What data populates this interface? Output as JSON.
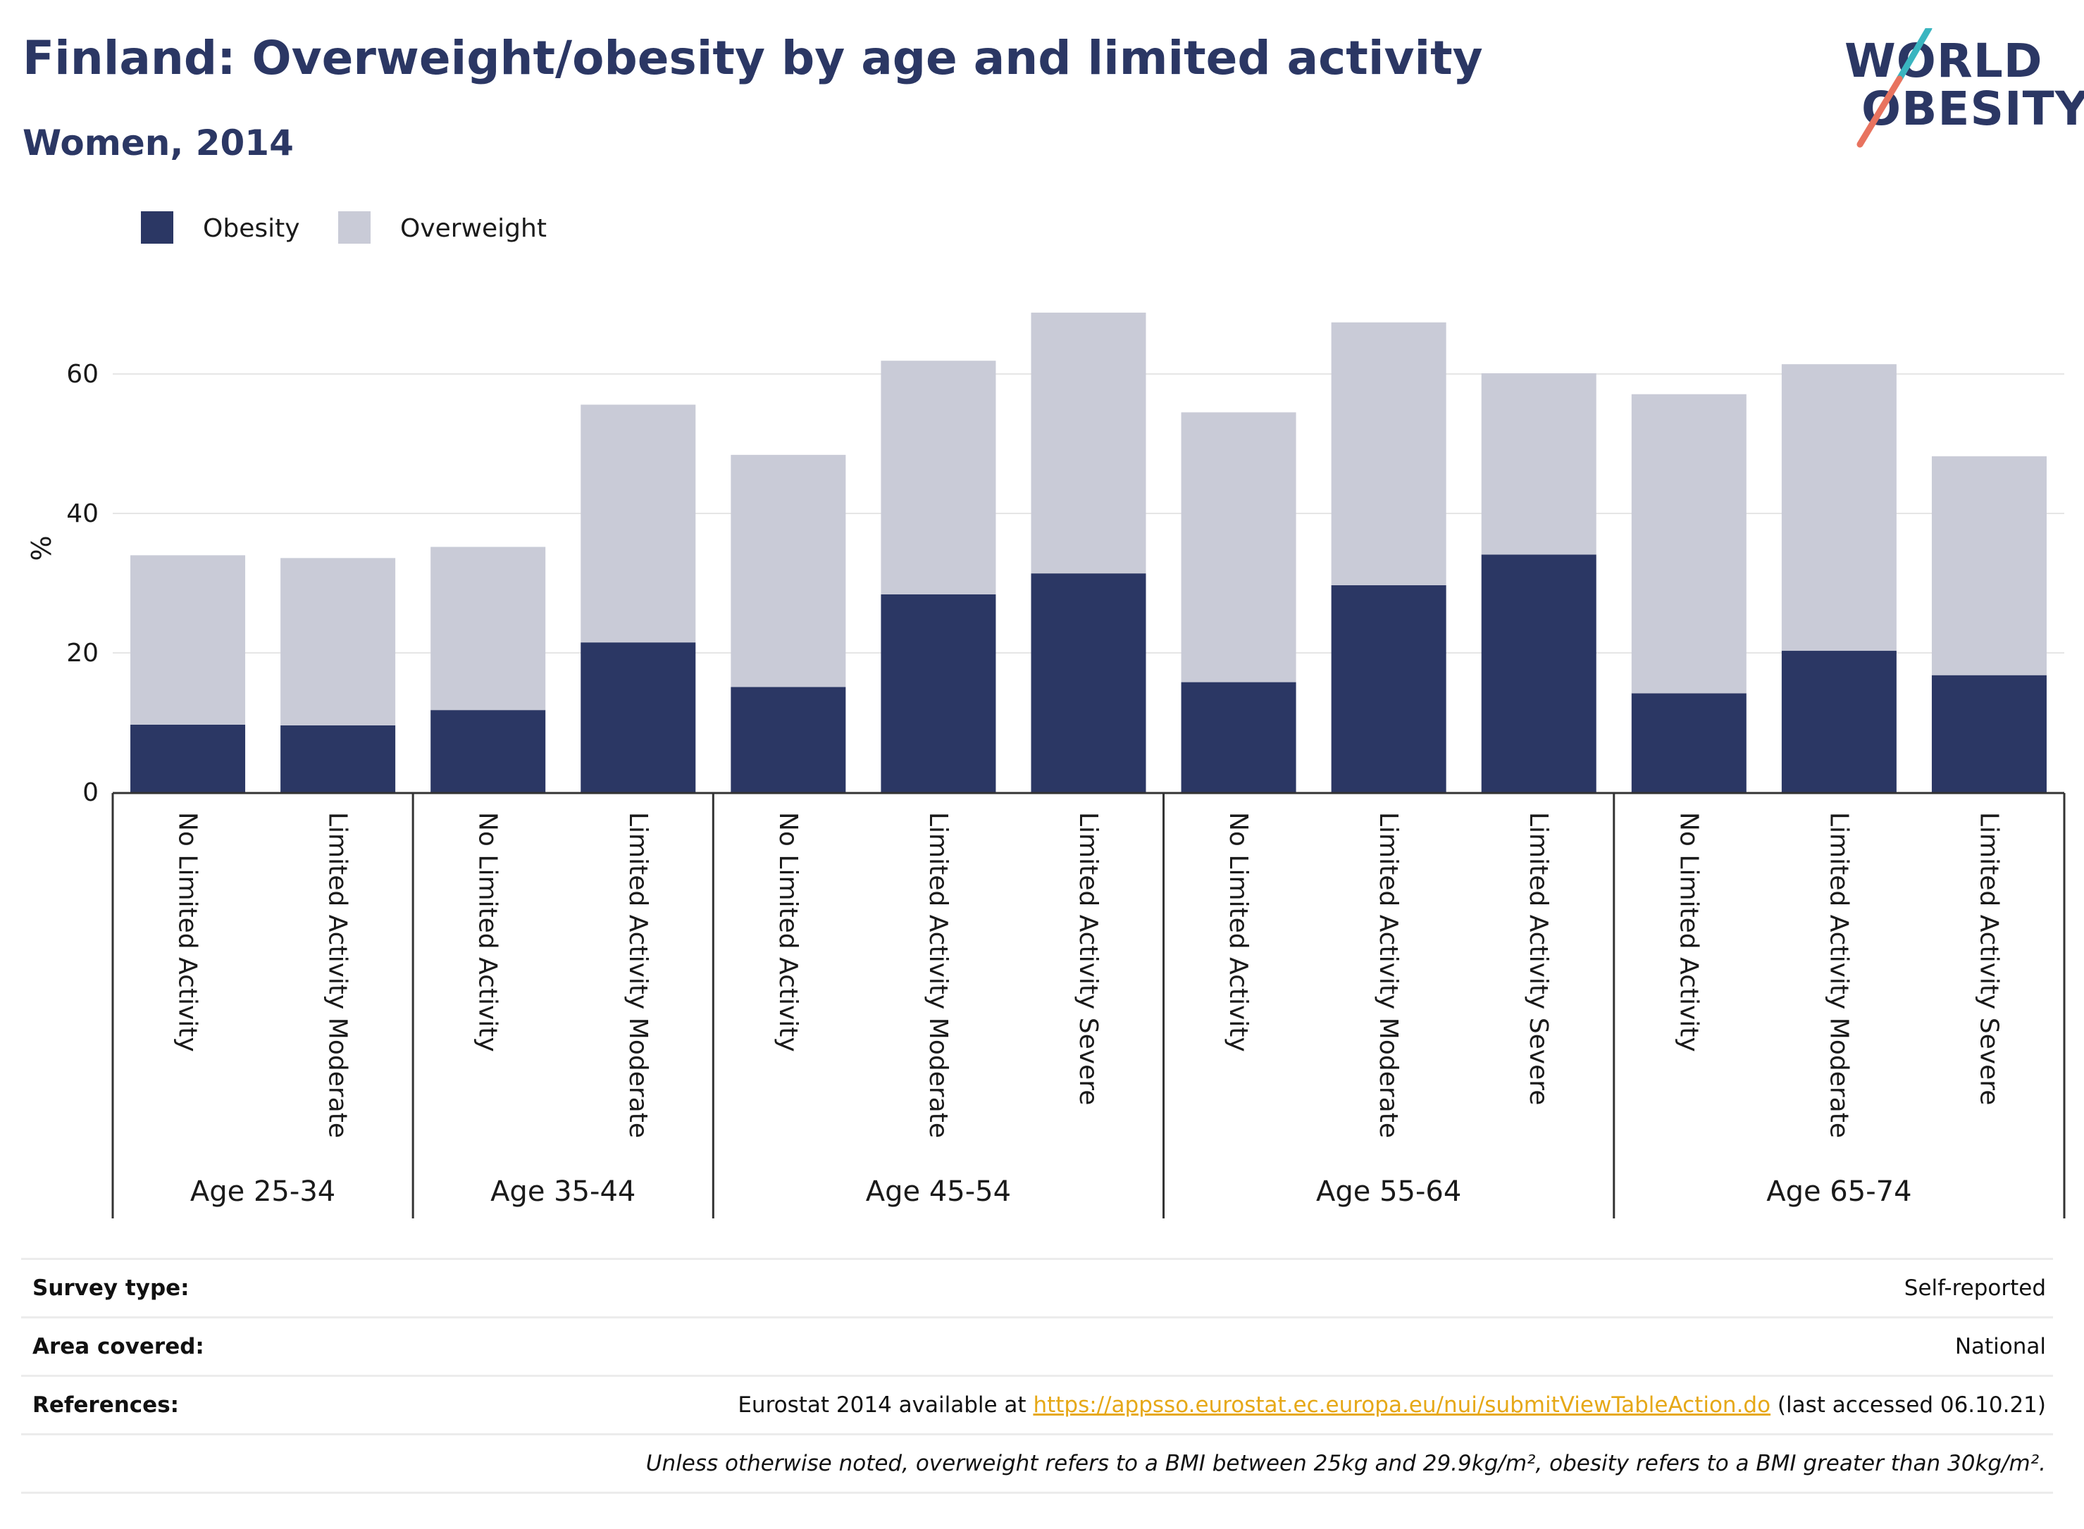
{
  "title": "Finland: Overweight/obesity by age and limited activity",
  "subtitle": "Women, 2014",
  "logo": {
    "line1": "WORLD",
    "line2": "OBESITY",
    "slash_colors": [
      "#3ab5c0",
      "#e8735f"
    ]
  },
  "colors": {
    "obesity": "#2b3764",
    "overweight": "#c9cbd7",
    "title": "#2b3764"
  },
  "chart_data": {
    "type": "bar",
    "stacked": true,
    "ylabel": "%",
    "ylim": [
      0,
      70
    ],
    "yticks": [
      0,
      20,
      40,
      60
    ],
    "grid": true,
    "legend_position": "top-left",
    "groups": [
      {
        "label": "Age 25-34",
        "categories": [
          "No Limited Activity",
          "Limited Activity Moderate"
        ]
      },
      {
        "label": "Age 35-44",
        "categories": [
          "No Limited Activity",
          "Limited Activity Moderate"
        ]
      },
      {
        "label": "Age 45-54",
        "categories": [
          "No Limited Activity",
          "Limited Activity Moderate",
          "Limited Activity Severe"
        ]
      },
      {
        "label": "Age 55-64",
        "categories": [
          "No Limited Activity",
          "Limited Activity Moderate",
          "Limited Activity Severe"
        ]
      },
      {
        "label": "Age 65-74",
        "categories": [
          "No Limited Activity",
          "Limited Activity Moderate",
          "Limited Activity Severe"
        ]
      }
    ],
    "series": [
      {
        "name": "Obesity",
        "color": "#2b3764",
        "values": [
          9.7,
          9.6,
          11.8,
          21.5,
          15.1,
          28.4,
          31.4,
          15.8,
          29.7,
          34.1,
          14.2,
          20.3,
          16.8
        ]
      },
      {
        "name": "Overweight",
        "color": "#c9cbd7",
        "values": [
          24.3,
          24.0,
          23.4,
          34.1,
          33.3,
          33.5,
          37.4,
          38.7,
          37.7,
          26.0,
          42.9,
          41.1,
          31.4
        ]
      }
    ]
  },
  "footer": {
    "survey_type_label": "Survey type:",
    "survey_type_value": "Self-reported",
    "area_label": "Area covered:",
    "area_value": "National",
    "references_label": "References:",
    "references_prefix": "Eurostat 2014 available at ",
    "references_link": "https://appsso.eurostat.ec.europa.eu/nui/submitViewTableAction.do",
    "references_suffix": " (last accessed 06.10.21)",
    "note": "Unless otherwise noted, overweight refers to a BMI between 25kg and 29.9kg/m², obesity refers to a BMI greater than 30kg/m²."
  }
}
